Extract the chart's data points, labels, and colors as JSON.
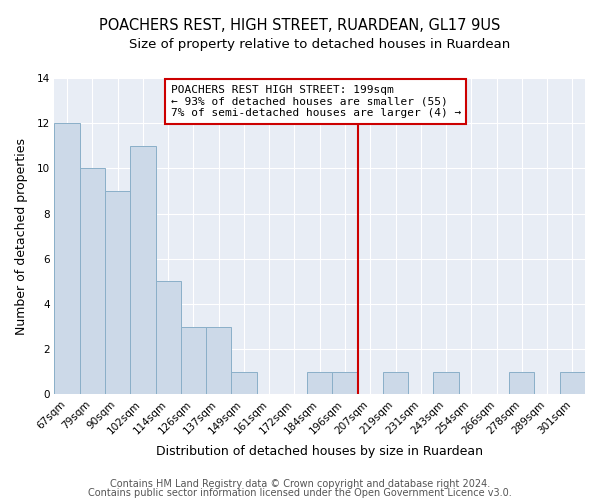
{
  "title": "POACHERS REST, HIGH STREET, RUARDEAN, GL17 9US",
  "subtitle": "Size of property relative to detached houses in Ruardean",
  "xlabel": "Distribution of detached houses by size in Ruardean",
  "ylabel": "Number of detached properties",
  "bin_labels": [
    "67sqm",
    "79sqm",
    "90sqm",
    "102sqm",
    "114sqm",
    "126sqm",
    "137sqm",
    "149sqm",
    "161sqm",
    "172sqm",
    "184sqm",
    "196sqm",
    "207sqm",
    "219sqm",
    "231sqm",
    "243sqm",
    "254sqm",
    "266sqm",
    "278sqm",
    "289sqm",
    "301sqm"
  ],
  "bar_heights": [
    12,
    10,
    9,
    11,
    5,
    3,
    3,
    1,
    0,
    0,
    1,
    1,
    0,
    1,
    0,
    1,
    0,
    0,
    1,
    0,
    1
  ],
  "bar_color": "#ccd9e8",
  "bar_edge_color": "#8aafc8",
  "vline_color": "#cc0000",
  "vline_x": 11.5,
  "annotation_title": "POACHERS REST HIGH STREET: 199sqm",
  "annotation_line1": "← 93% of detached houses are smaller (55)",
  "annotation_line2": "7% of semi-detached houses are larger (4) →",
  "annotation_box_facecolor": "#ffffff",
  "annotation_box_edgecolor": "#cc0000",
  "ylim": [
    0,
    14
  ],
  "yticks": [
    0,
    2,
    4,
    6,
    8,
    10,
    12,
    14
  ],
  "plot_bg_color": "#e8edf5",
  "fig_bg_color": "#ffffff",
  "grid_color": "#ffffff",
  "footer1": "Contains HM Land Registry data © Crown copyright and database right 2024.",
  "footer2": "Contains public sector information licensed under the Open Government Licence v3.0.",
  "title_fontsize": 10.5,
  "subtitle_fontsize": 9.5,
  "annotation_fontsize": 8,
  "footer_fontsize": 7,
  "tick_fontsize": 7.5,
  "axis_label_fontsize": 9
}
